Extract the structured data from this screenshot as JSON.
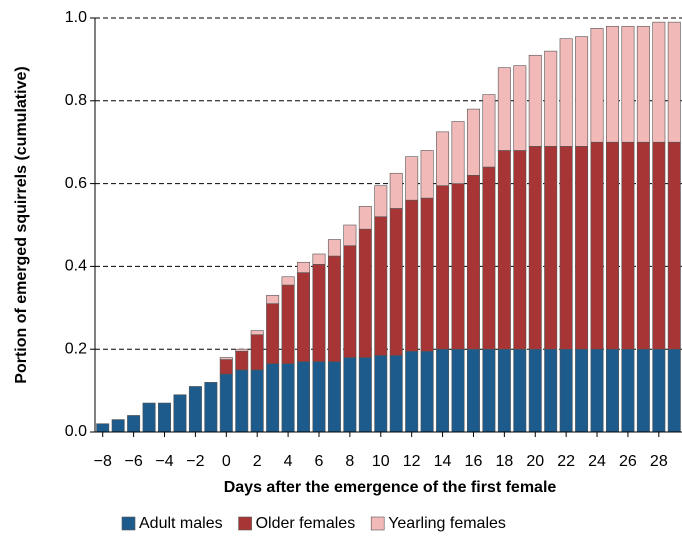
{
  "chart_data": {
    "type": "stacked_bar",
    "xlabel": "Days after the emergence of the first female",
    "ylabel": "Portion of emerged squirrels (cumulative)",
    "x": [
      -8,
      -7,
      -6,
      -5,
      -4,
      -3,
      -2,
      -1,
      0,
      1,
      2,
      3,
      4,
      5,
      6,
      7,
      8,
      9,
      10,
      11,
      12,
      13,
      14,
      15,
      16,
      17,
      18,
      19,
      20,
      21,
      22,
      23,
      24,
      25,
      26,
      27,
      28,
      29
    ],
    "series": [
      {
        "name": "Adult males",
        "color": "#1d5b8c",
        "values": [
          0.02,
          0.03,
          0.04,
          0.07,
          0.07,
          0.09,
          0.11,
          0.12,
          0.14,
          0.15,
          0.15,
          0.165,
          0.165,
          0.17,
          0.17,
          0.17,
          0.18,
          0.18,
          0.185,
          0.185,
          0.195,
          0.195,
          0.2,
          0.2,
          0.2,
          0.2,
          0.2,
          0.2,
          0.2,
          0.2,
          0.2,
          0.2,
          0.2,
          0.2,
          0.2,
          0.2,
          0.2,
          0.2
        ]
      },
      {
        "name": "Older females",
        "color": "#a83535",
        "values": [
          0,
          0,
          0,
          0,
          0,
          0,
          0,
          0,
          0.035,
          0.045,
          0.085,
          0.145,
          0.19,
          0.215,
          0.235,
          0.255,
          0.27,
          0.31,
          0.335,
          0.355,
          0.365,
          0.37,
          0.395,
          0.4,
          0.42,
          0.44,
          0.48,
          0.48,
          0.49,
          0.49,
          0.49,
          0.49,
          0.5,
          0.5,
          0.5,
          0.5,
          0.5,
          0.5
        ]
      },
      {
        "name": "Yearling females",
        "color": "#f2b9b9",
        "values": [
          0,
          0,
          0,
          0,
          0,
          0,
          0,
          0,
          0.005,
          0.005,
          0.01,
          0.02,
          0.02,
          0.025,
          0.025,
          0.04,
          0.05,
          0.055,
          0.075,
          0.085,
          0.105,
          0.115,
          0.13,
          0.15,
          0.16,
          0.175,
          0.2,
          0.205,
          0.22,
          0.23,
          0.26,
          0.265,
          0.275,
          0.28,
          0.28,
          0.28,
          0.29,
          0.29
        ]
      }
    ],
    "xlim": [
      -8.5,
      29.5
    ],
    "xticks": [
      {
        "value": -8,
        "label": "−8"
      },
      {
        "value": -6,
        "label": "−6"
      },
      {
        "value": -4,
        "label": "−4"
      },
      {
        "value": -2,
        "label": "−2"
      },
      0,
      2,
      4,
      6,
      8,
      10,
      12,
      14,
      16,
      18,
      20,
      22,
      24,
      26,
      28
    ],
    "ylim": [
      0,
      1
    ],
    "yticks": [
      {
        "value": 0,
        "label": "0.0"
      },
      0.2,
      0.4,
      0.6,
      0.8,
      {
        "value": 1,
        "label": "1.0"
      }
    ],
    "grid": true
  }
}
